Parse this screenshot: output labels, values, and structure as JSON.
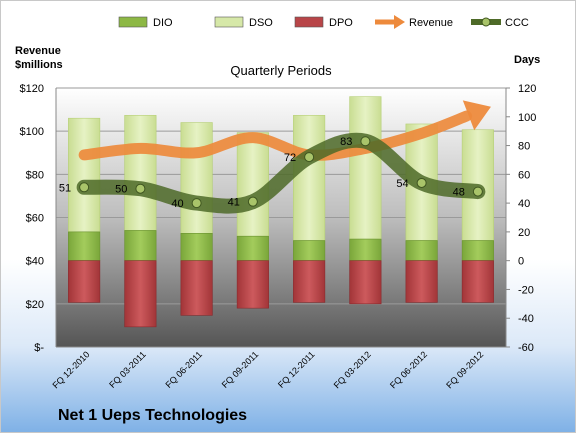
{
  "chart_data": {
    "type": "bar",
    "title": "Quarterly Periods",
    "company": "Net 1 Ueps Technologies",
    "left_axis": {
      "title_line1": "Revenue",
      "title_line2": "$millions",
      "ylim": [
        0,
        120
      ],
      "tick_values": [
        0,
        20,
        40,
        60,
        80,
        100,
        120
      ],
      "tick_labels": [
        "$-",
        "$20",
        "$40",
        "$60",
        "$80",
        "$100",
        "$120"
      ]
    },
    "right_axis": {
      "title": "Days",
      "ylim": [
        -60,
        120
      ],
      "tick_values": [
        -60,
        -40,
        -20,
        0,
        20,
        40,
        60,
        80,
        100,
        120
      ],
      "tick_labels": [
        "-60",
        "-40",
        "-20",
        "0",
        "20",
        "40",
        "60",
        "80",
        "100",
        "120"
      ]
    },
    "categories": [
      "FQ 12-2010",
      "FQ 03-2011",
      "FQ 06-2011",
      "FQ 09-2011",
      "FQ 12-2011",
      "FQ 03-2012",
      "FQ 06-2012",
      "FQ 09-2012"
    ],
    "legend": [
      {
        "name": "DIO",
        "kind": "bar",
        "color": "#8db845"
      },
      {
        "name": "DSO",
        "kind": "bar",
        "color": "#d6e8a8"
      },
      {
        "name": "DPO",
        "kind": "bar",
        "color": "#b84548"
      },
      {
        "name": "Revenue",
        "kind": "arrow",
        "color": "#ed8a3c"
      },
      {
        "name": "CCC",
        "kind": "line",
        "color": "#4e6a28"
      }
    ],
    "series": [
      {
        "name": "DIO",
        "axis": "days",
        "values": [
          20,
          21,
          19,
          17,
          14,
          15,
          14,
          14
        ]
      },
      {
        "name": "DSO",
        "axis": "days",
        "values": [
          79,
          80,
          77,
          72,
          87,
          99,
          81,
          77
        ]
      },
      {
        "name": "DPO",
        "axis": "days",
        "values": [
          -29,
          -46,
          -38,
          -33,
          -29,
          -30,
          -29,
          -29
        ]
      },
      {
        "name": "Revenue",
        "axis": "revenue",
        "values": [
          89,
          92,
          90,
          97,
          89,
          92,
          99,
          109
        ]
      },
      {
        "name": "CCC",
        "axis": "days",
        "values": [
          51,
          50,
          40,
          41,
          72,
          83,
          54,
          48
        ]
      }
    ],
    "ccc_labels": [
      "51",
      "50",
      "40",
      "41",
      "72",
      "83",
      "54",
      "48"
    ],
    "colors": {
      "dio": "#8db845",
      "dso": "#d6e8a8",
      "dpo": "#b84548",
      "revenue": "#ed8a3c",
      "ccc": "#4e6a28"
    }
  }
}
